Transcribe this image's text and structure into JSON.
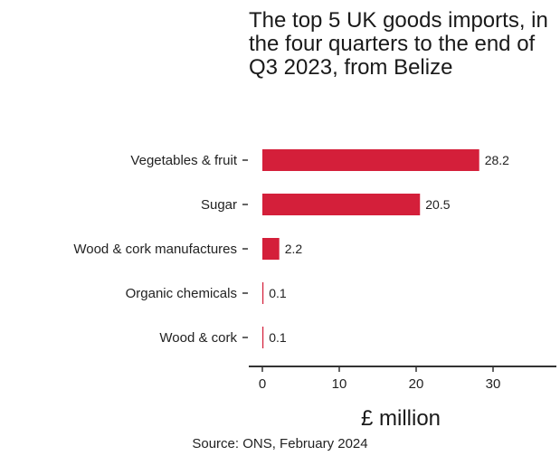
{
  "chart_data": {
    "type": "bar",
    "orientation": "horizontal",
    "title": "The top 5 UK goods imports, in the four quarters to the end of Q3 2023, from Belize",
    "categories": [
      "Vegetables & fruit",
      "Sugar",
      "Wood & cork manufactures",
      "Organic chemicals",
      "Wood & cork"
    ],
    "values": [
      28.2,
      20.5,
      2.2,
      0.1,
      0.1
    ],
    "data_labels": [
      "28.2",
      "20.5",
      "2.2",
      "0.1",
      "0.1"
    ],
    "xlabel": "£ million",
    "ylabel": "",
    "xlim": [
      0,
      38
    ],
    "x_ticks": [
      0,
      10,
      20,
      30
    ],
    "bar_color": "#d41f3a",
    "grid": false,
    "source": "Source: ONS, February 2024"
  }
}
